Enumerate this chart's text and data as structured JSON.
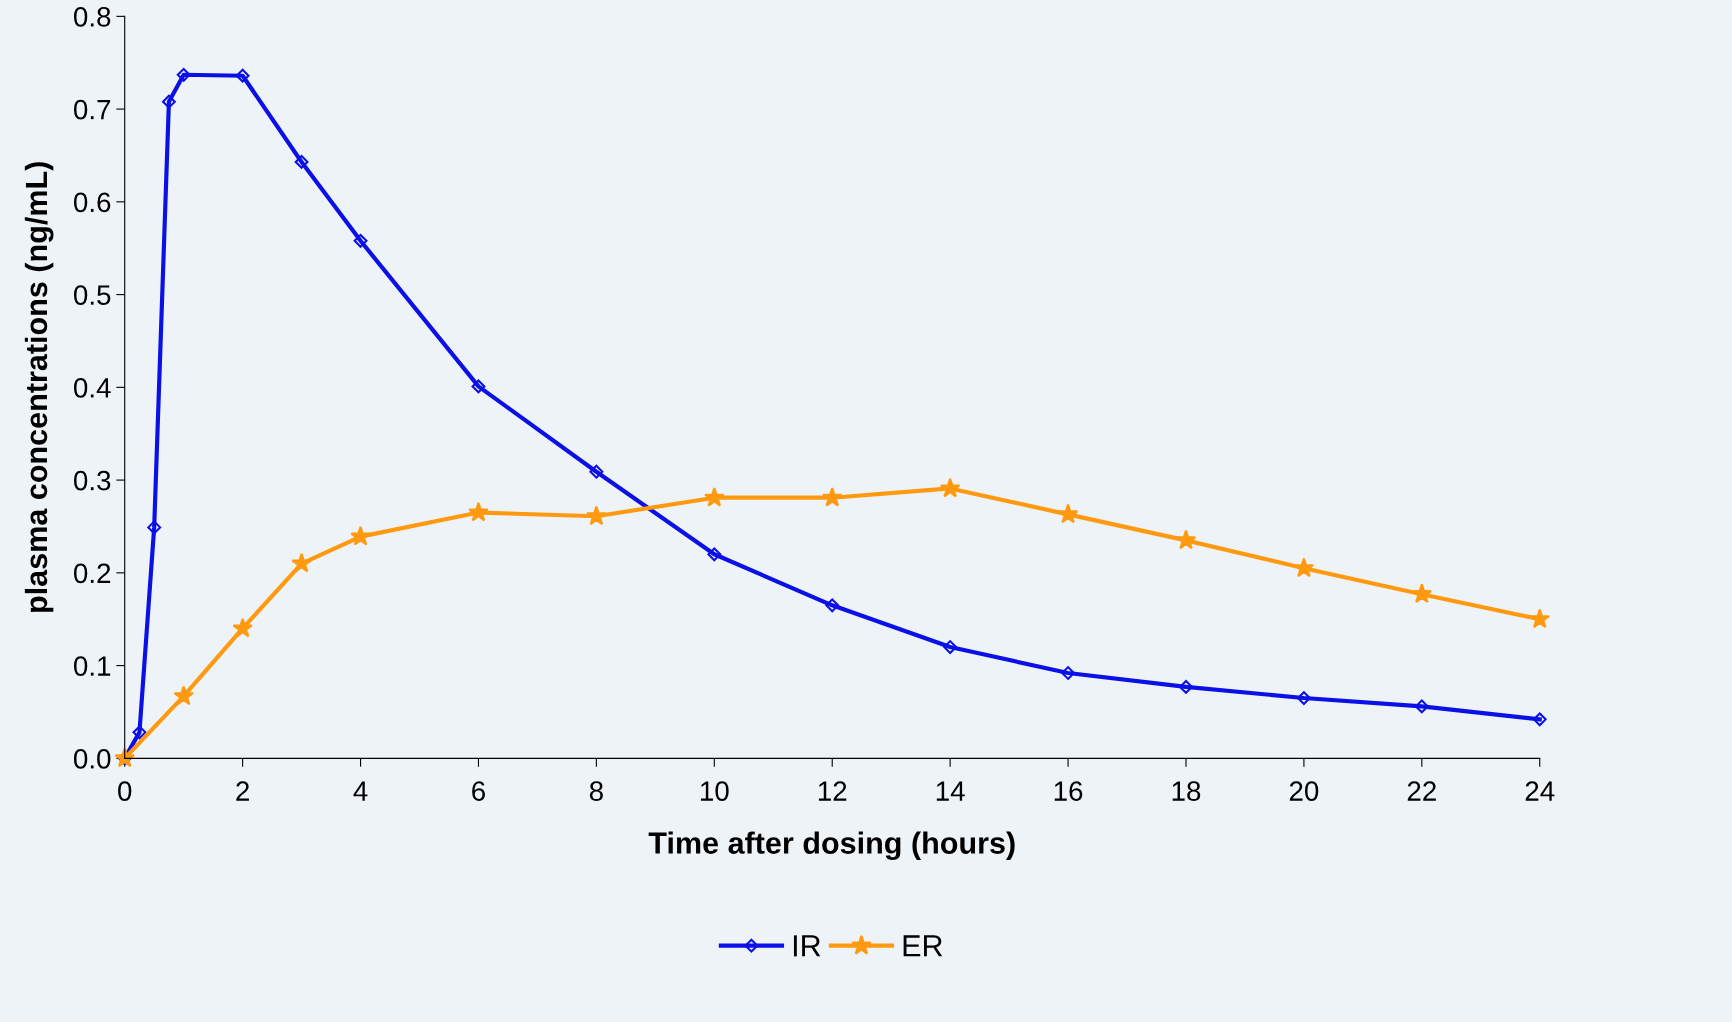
{
  "chart_data": {
    "type": "line",
    "xlabel": "Time after dosing (hours)",
    "ylabel": "plasma concentrations (ng/mL)",
    "xlim": [
      0,
      24
    ],
    "xticks": [
      0,
      2,
      4,
      6,
      8,
      10,
      12,
      14,
      16,
      18,
      20,
      22,
      24
    ],
    "ylim": [
      0,
      0.8
    ],
    "yticks": [
      {
        "value": 0,
        "label": "0.0"
      },
      0.1,
      0.2,
      0.3,
      0.4,
      0.5,
      0.6,
      0.7,
      0.8
    ],
    "grid": false,
    "legend": "bottom",
    "line_style": "solid",
    "series": [
      {
        "name": "IR",
        "color": "#0a10e6",
        "marker": "diamond",
        "x": [
          0,
          0.25,
          0.5,
          0.75,
          1,
          2,
          3,
          4,
          6,
          8,
          10,
          12,
          14,
          16,
          18,
          20,
          22,
          24
        ],
        "values": [
          0,
          0.028,
          0.249,
          0.708,
          0.737,
          0.736,
          0.643,
          0.558,
          0.401,
          0.309,
          0.22,
          0.165,
          0.12,
          0.092,
          0.077,
          0.065,
          0.056,
          0.042
        ]
      },
      {
        "name": "ER",
        "color": "#ff9a10",
        "marker": "star",
        "x": [
          0,
          1,
          2,
          3,
          4,
          6,
          8,
          10,
          12,
          14,
          16,
          18,
          20,
          22,
          24
        ],
        "values": [
          0,
          0.067,
          0.14,
          0.21,
          0.239,
          0.265,
          0.261,
          0.281,
          0.281,
          0.291,
          0.263,
          0.235,
          0.205,
          0.177,
          0.15
        ]
      }
    ]
  }
}
